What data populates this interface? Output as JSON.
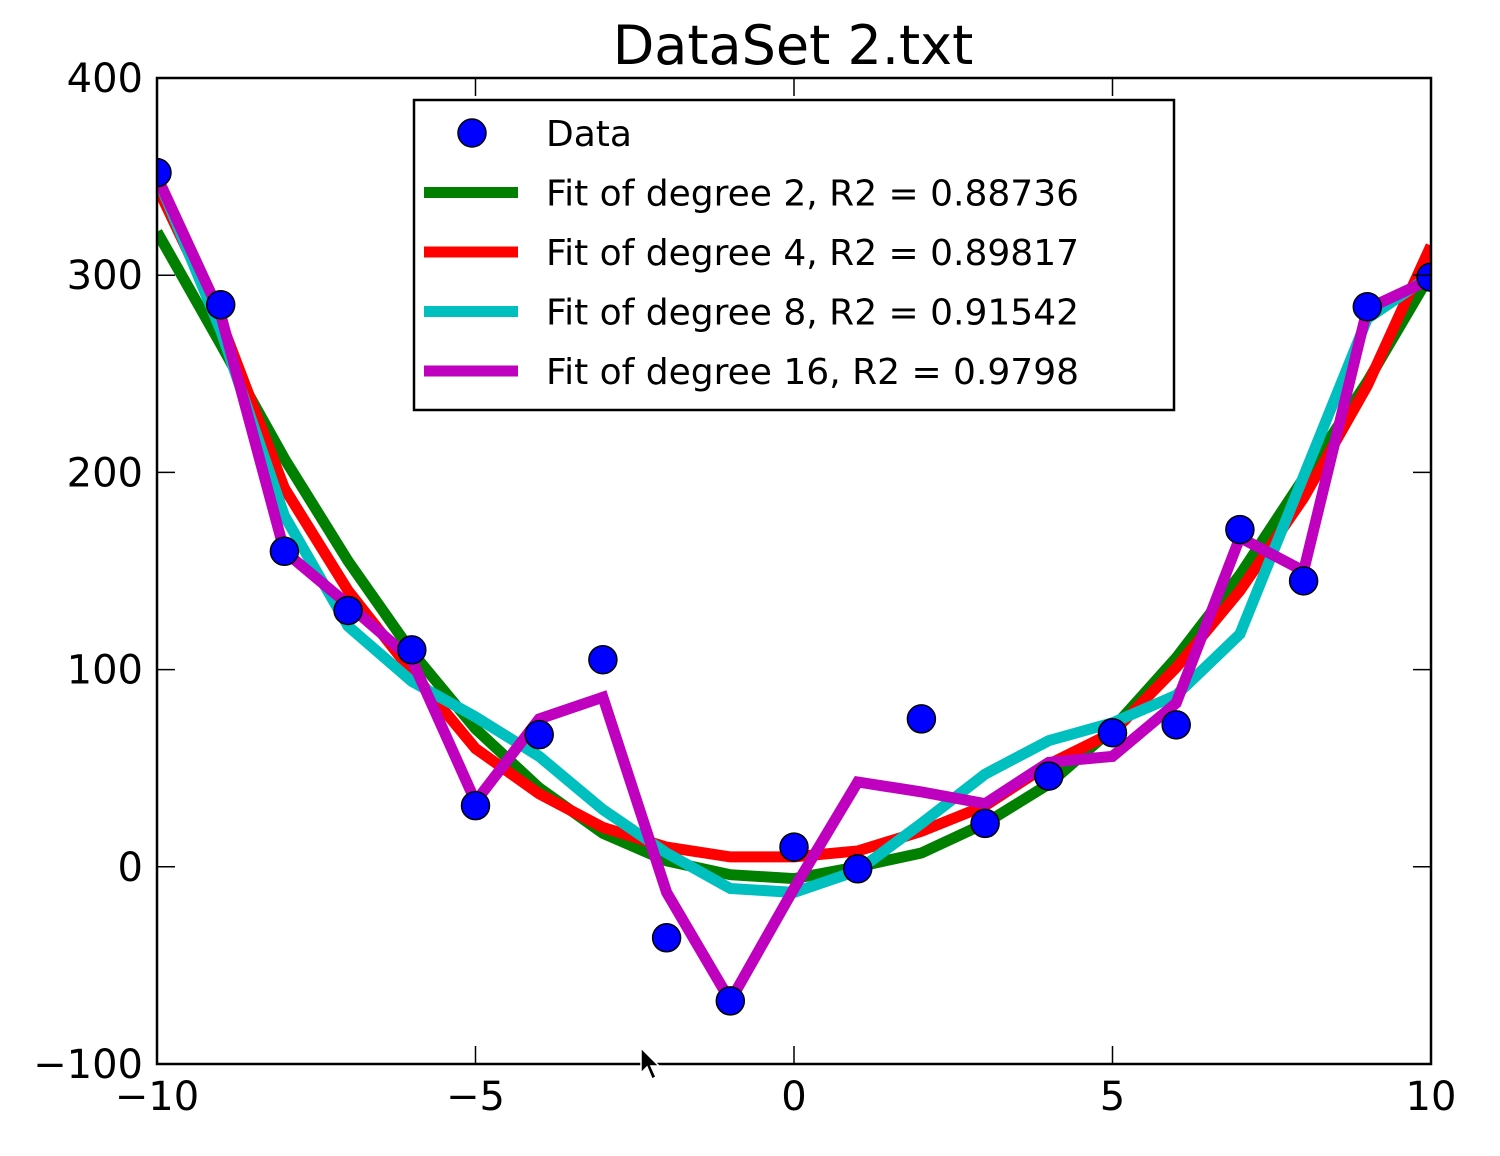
{
  "chart_data": {
    "type": "scatter",
    "title": "DataSet 2.txt",
    "xlabel": "",
    "ylabel": "",
    "xlim": [
      -10,
      10
    ],
    "ylim": [
      -100,
      400
    ],
    "x_ticks": [
      -10,
      -5,
      0,
      5,
      10
    ],
    "x_tick_labels": [
      "−10",
      "−5",
      "0",
      "5",
      "10"
    ],
    "y_ticks": [
      -100,
      0,
      100,
      200,
      300,
      400
    ],
    "y_tick_labels": [
      "−100",
      "0",
      "100",
      "200",
      "300",
      "400"
    ],
    "grid": false,
    "legend_position": "upper-center",
    "scatter": {
      "name": "Data",
      "color": "#0000ff",
      "points": [
        {
          "x": -10,
          "y": 352
        },
        {
          "x": -9,
          "y": 285
        },
        {
          "x": -8,
          "y": 160
        },
        {
          "x": -7,
          "y": 130
        },
        {
          "x": -6,
          "y": 110
        },
        {
          "x": -5,
          "y": 31
        },
        {
          "x": -4,
          "y": 67
        },
        {
          "x": -3,
          "y": 105
        },
        {
          "x": -2,
          "y": -36
        },
        {
          "x": -1,
          "y": -68
        },
        {
          "x": 0,
          "y": 10
        },
        {
          "x": 1,
          "y": -1
        },
        {
          "x": 2,
          "y": 75
        },
        {
          "x": 3,
          "y": 22
        },
        {
          "x": 4,
          "y": 46
        },
        {
          "x": 5,
          "y": 68
        },
        {
          "x": 6,
          "y": 72
        },
        {
          "x": 7,
          "y": 171
        },
        {
          "x": 8,
          "y": 145
        },
        {
          "x": 9,
          "y": 284
        },
        {
          "x": 10,
          "y": 299
        }
      ]
    },
    "series": [
      {
        "name": "Fit of degree 2, R2 = 0.88736",
        "color": "#007f00",
        "x": [
          -10,
          -9,
          -8,
          -7,
          -6,
          -5,
          -4,
          -3,
          -2,
          -1,
          0,
          1,
          2,
          3,
          4,
          5,
          6,
          7,
          8,
          9,
          10
        ],
        "values": [
          322,
          265,
          207,
          155,
          109,
          70,
          40,
          17,
          3,
          -4,
          -6,
          0,
          7,
          22,
          42,
          70,
          106,
          148,
          197,
          246,
          301
        ]
      },
      {
        "name": "Fit of degree 4, R2 = 0.89817",
        "color": "#ff0000",
        "x": [
          -10,
          -9,
          -8,
          -7,
          -6,
          -5,
          -4,
          -3,
          -2,
          -1,
          0,
          1,
          2,
          3,
          4,
          5,
          6,
          7,
          8,
          9,
          10
        ],
        "values": [
          345,
          277,
          192,
          140,
          99,
          60,
          37,
          20,
          10,
          5,
          5,
          8,
          18,
          31,
          52,
          68,
          101,
          140,
          187,
          244,
          315
        ]
      },
      {
        "name": "Fit of degree 8, R2 = 0.91542",
        "color": "#00bfbf",
        "x": [
          -10,
          -9,
          -8,
          -7,
          -6,
          -5,
          -4,
          -3,
          -2,
          -1,
          0,
          1,
          2,
          3,
          4,
          5,
          6,
          7,
          8,
          9,
          10
        ],
        "values": [
          350,
          272,
          178,
          122,
          94,
          76,
          56,
          29,
          7,
          -11,
          -13,
          -2,
          22,
          47,
          64,
          73,
          87,
          118,
          198,
          278,
          300
        ]
      },
      {
        "name": "Fit of degree 16, R2 = 0.9798",
        "color": "#bf00bf",
        "x": [
          -10,
          -9,
          -8,
          -7,
          -6,
          -5,
          -4,
          -3,
          -2,
          -1,
          0,
          1,
          2,
          3,
          4,
          5,
          6,
          7,
          8,
          9,
          10
        ],
        "values": [
          350,
          280,
          160,
          133,
          105,
          33,
          75,
          86,
          -13,
          -68,
          -11,
          43,
          38,
          32,
          53,
          56,
          83,
          167,
          150,
          283,
          298
        ]
      }
    ]
  }
}
